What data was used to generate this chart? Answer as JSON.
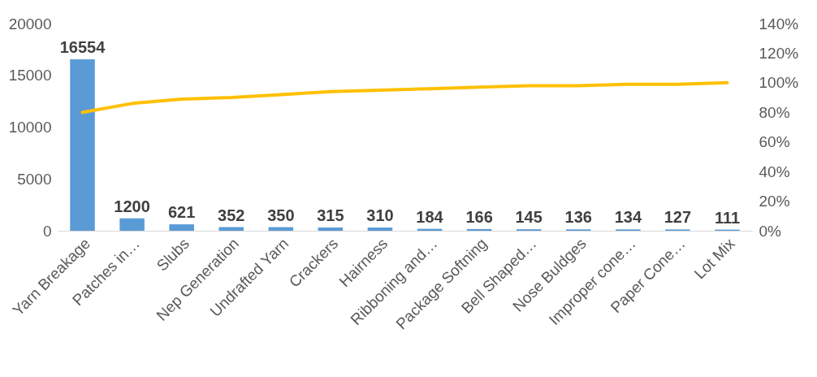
{
  "chart_data": {
    "type": "bar",
    "categories": [
      "Yarn Breakage",
      "Patches in…",
      "Slubs",
      "Nep Generation",
      "Undrafted Yarn",
      "Crackers",
      "Hairness",
      "Ribboning and…",
      "Package Softning",
      "Bell Shaped…",
      "Nose Buldges",
      "Improper cone…",
      "Paper Cone…",
      "Lot Mix"
    ],
    "series": [
      {
        "color": "#5b9bd5",
        "values": [
          16554,
          1200,
          621,
          352,
          350,
          315,
          310,
          184,
          166,
          145,
          136,
          134,
          127,
          111
        ],
        "value_labels": [
          "16554",
          "1200",
          "621",
          "352",
          "350",
          "315",
          "310",
          "184",
          "166",
          "145",
          "136",
          "134",
          "127",
          "111"
        ]
      },
      {
        "type": "line",
        "axis": "y2",
        "color": "#ffc000",
        "values": [
          80,
          86,
          89,
          90,
          92,
          94,
          95,
          96,
          97,
          98,
          98,
          99,
          99,
          100
        ]
      }
    ],
    "ylim": [
      0,
      20000
    ],
    "yticks": [
      0,
      5000,
      10000,
      15000,
      20000
    ],
    "y2lim": [
      0,
      140
    ],
    "y2ticks": [
      {
        "value": 0,
        "label": "0%"
      },
      {
        "value": 20,
        "label": "20%"
      },
      {
        "value": 40,
        "label": "40%"
      },
      {
        "value": 60,
        "label": "60%"
      },
      {
        "value": 80,
        "label": "80%"
      },
      {
        "value": 100,
        "label": "100%"
      },
      {
        "value": 120,
        "label": "120%"
      },
      {
        "value": 140,
        "label": "140%"
      }
    ],
    "grid": false,
    "marker": "none",
    "line_style": "solid"
  }
}
